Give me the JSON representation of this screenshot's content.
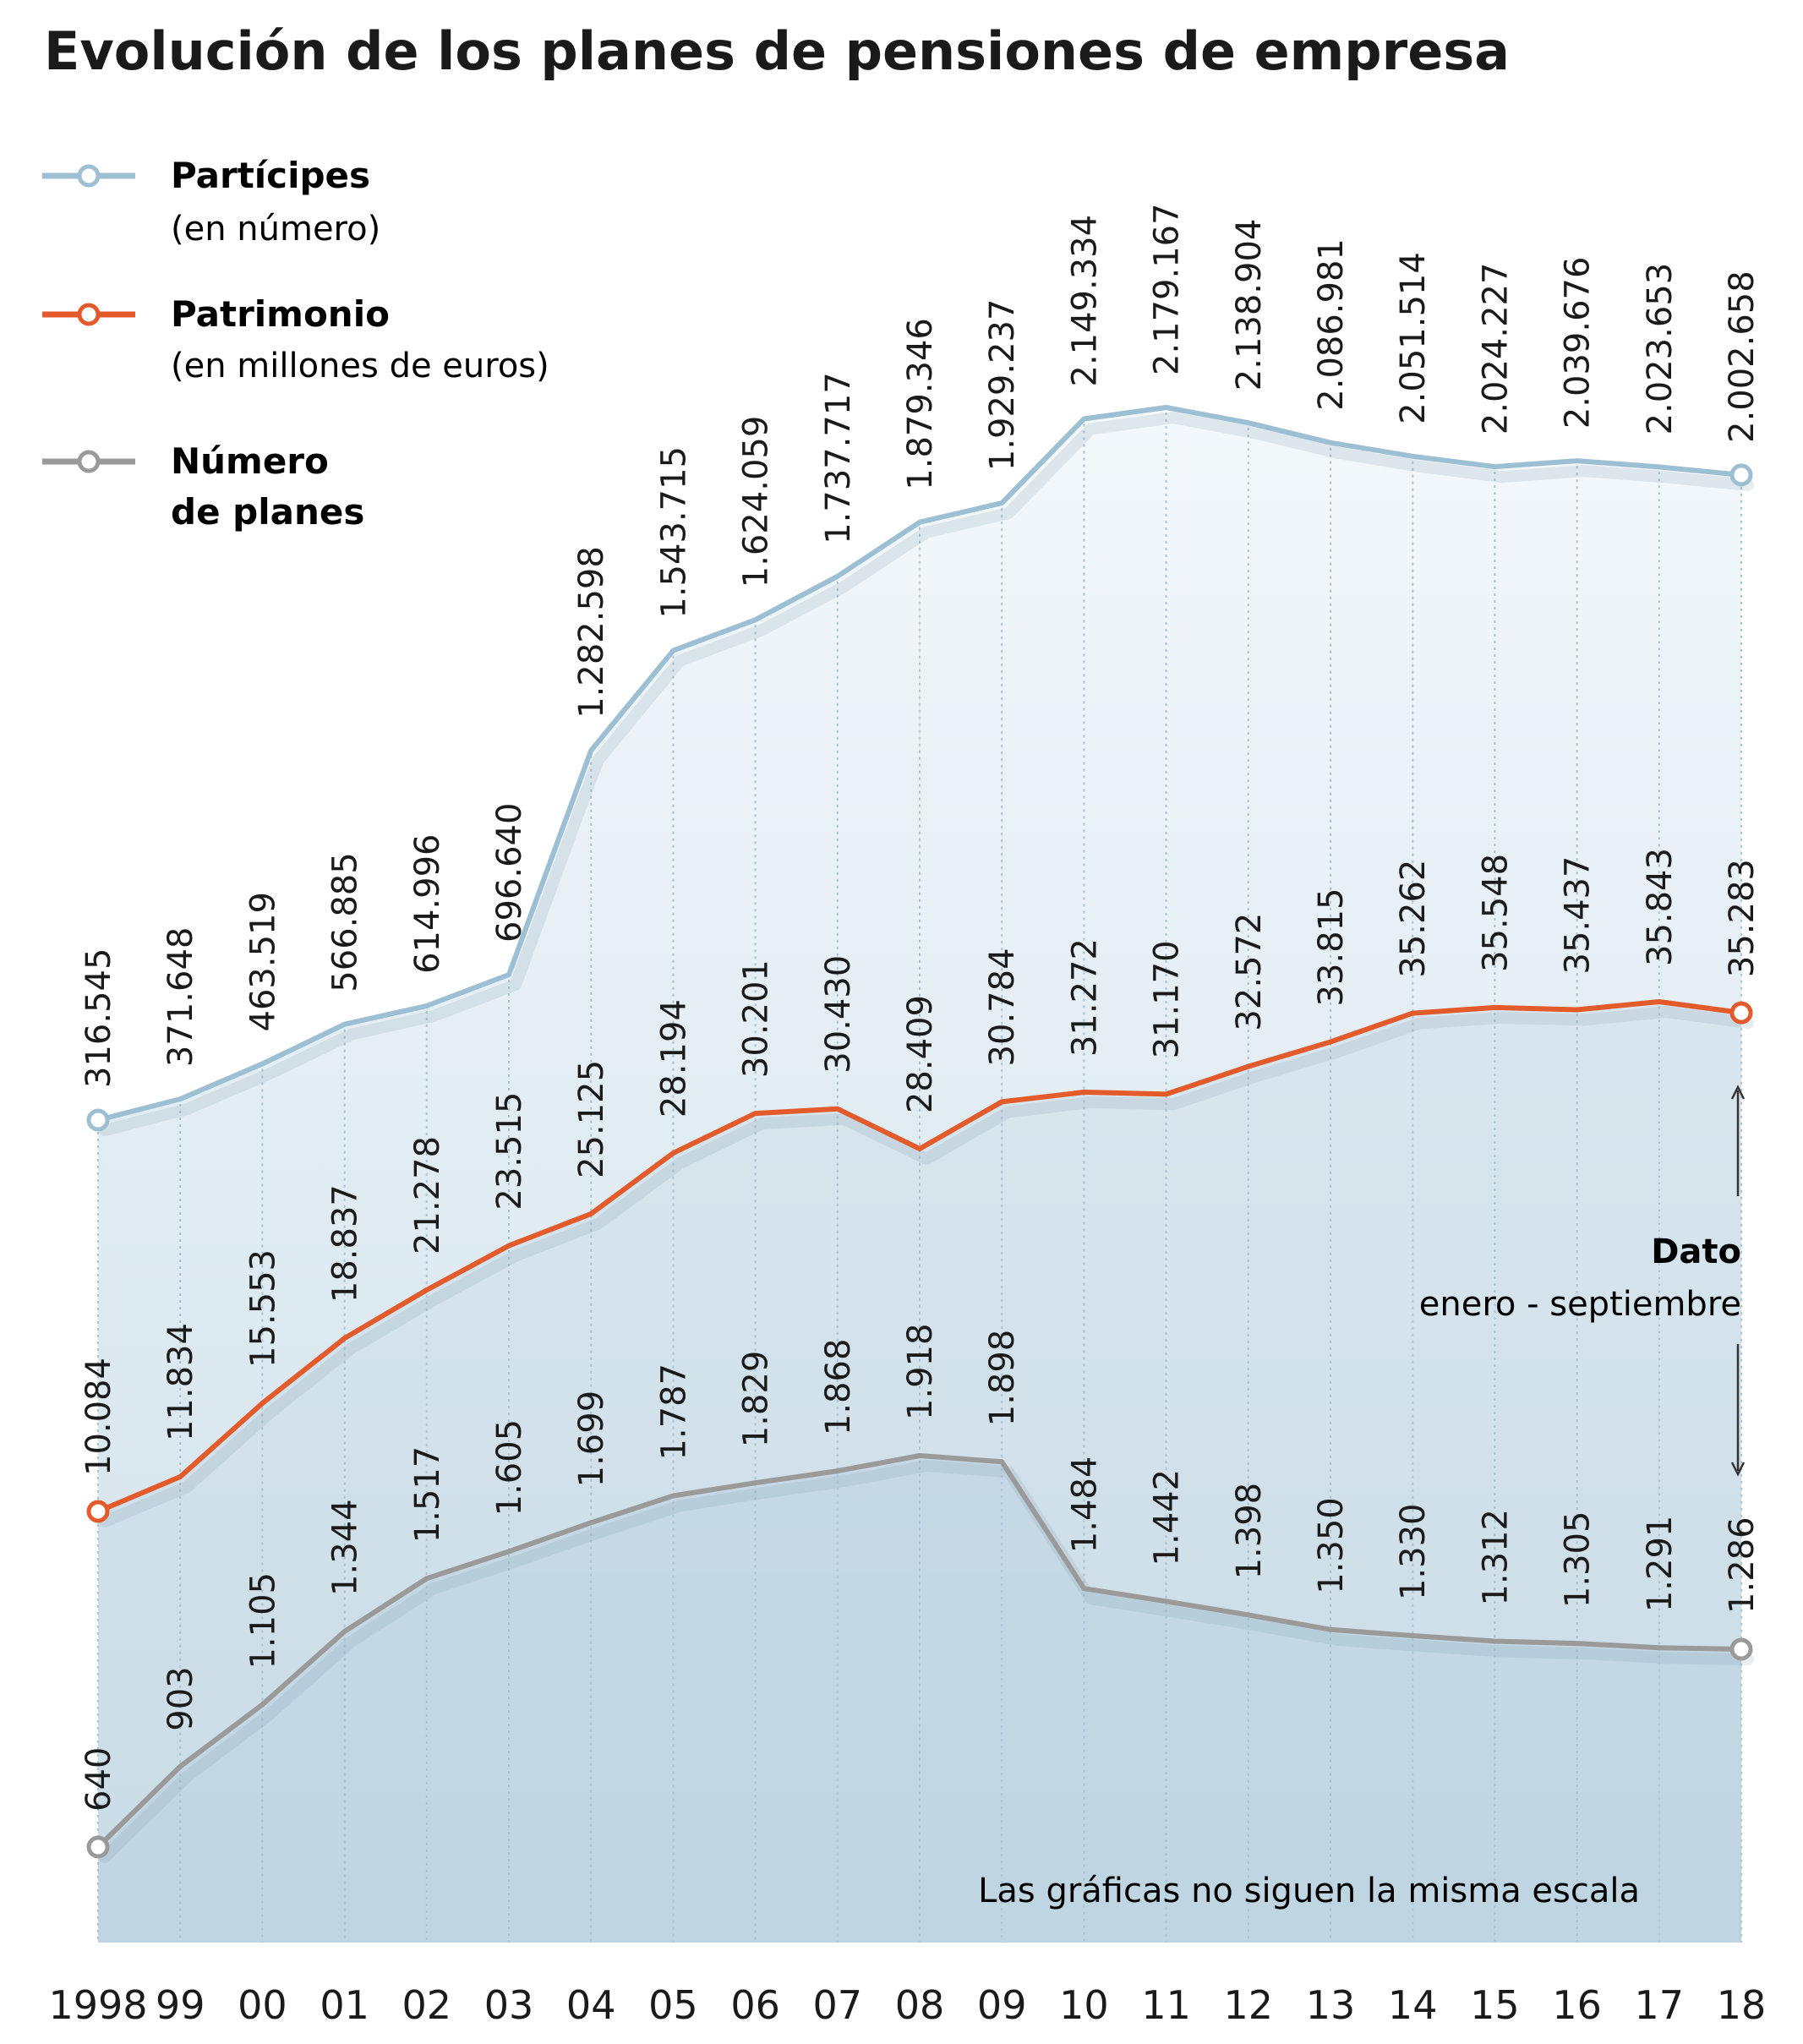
{
  "chart_data": {
    "type": "line",
    "title": "Evolución de los planes de pensiones de empresa",
    "categories": [
      "1998",
      "99",
      "00",
      "01",
      "02",
      "03",
      "04",
      "05",
      "06",
      "07",
      "08",
      "09",
      "10",
      "11",
      "12",
      "13",
      "14",
      "15",
      "16",
      "17",
      "18"
    ],
    "series": [
      {
        "name": "Partícipes",
        "subtitle": "(en número)",
        "color": "#9dbfd4",
        "values": [
          316545,
          371648,
          463519,
          566885,
          614996,
          696640,
          1282598,
          1543715,
          1624059,
          1737717,
          1879346,
          1929237,
          2149334,
          2179167,
          2138904,
          2086981,
          2051514,
          2024227,
          2039676,
          2023653,
          2002658
        ],
        "labels": [
          "316.545",
          "371.648",
          "463.519",
          "566.885",
          "614.996",
          "696.640",
          "1.282.598",
          "1.543.715",
          "1.624.059",
          "1.737.717",
          "1.879.346",
          "1.929.237",
          "2.149.334",
          "2.179.167",
          "2.138.904",
          "2.086.981",
          "2.051.514",
          "2.024.227",
          "2.039.676",
          "2.023.653",
          "2.002.658"
        ]
      },
      {
        "name": "Patrimonio",
        "subtitle": "(en millones de euros)",
        "color": "#e35a2b",
        "values": [
          10084,
          11834,
          15553,
          18837,
          21278,
          23515,
          25125,
          28194,
          30201,
          30430,
          28409,
          30784,
          31272,
          31170,
          32572,
          33815,
          35262,
          35548,
          35437,
          35843,
          35283
        ],
        "labels": [
          "10.084",
          "11.834",
          "15.553",
          "18.837",
          "21.278",
          "23.515",
          "25.125",
          "28.194",
          "30.201",
          "30.430",
          "28.409",
          "30.784",
          "31.272",
          "31.170",
          "32.572",
          "33.815",
          "35.262",
          "35.548",
          "35.437",
          "35.843",
          "35.283"
        ]
      },
      {
        "name": "Número",
        "subtitle": "de planes",
        "color": "#9a9a9a",
        "values": [
          640,
          903,
          1105,
          1344,
          1517,
          1605,
          1699,
          1787,
          1829,
          1868,
          1918,
          1898,
          1484,
          1442,
          1398,
          1350,
          1330,
          1312,
          1305,
          1291,
          1286
        ],
        "labels": [
          "640",
          "903",
          "1.105",
          "1.344",
          "1.517",
          "1.605",
          "1.699",
          "1.787",
          "1.829",
          "1.868",
          "1.918",
          "1.898",
          "1.484",
          "1.442",
          "1.398",
          "1.350",
          "1.330",
          "1.312",
          "1.305",
          "1.291",
          "1.286"
        ]
      }
    ],
    "annotation": {
      "title": "Dato",
      "text": "enero - septiembre"
    },
    "note": "Las gráficas no siguen la misma escala",
    "grid": "vertical dotted"
  }
}
